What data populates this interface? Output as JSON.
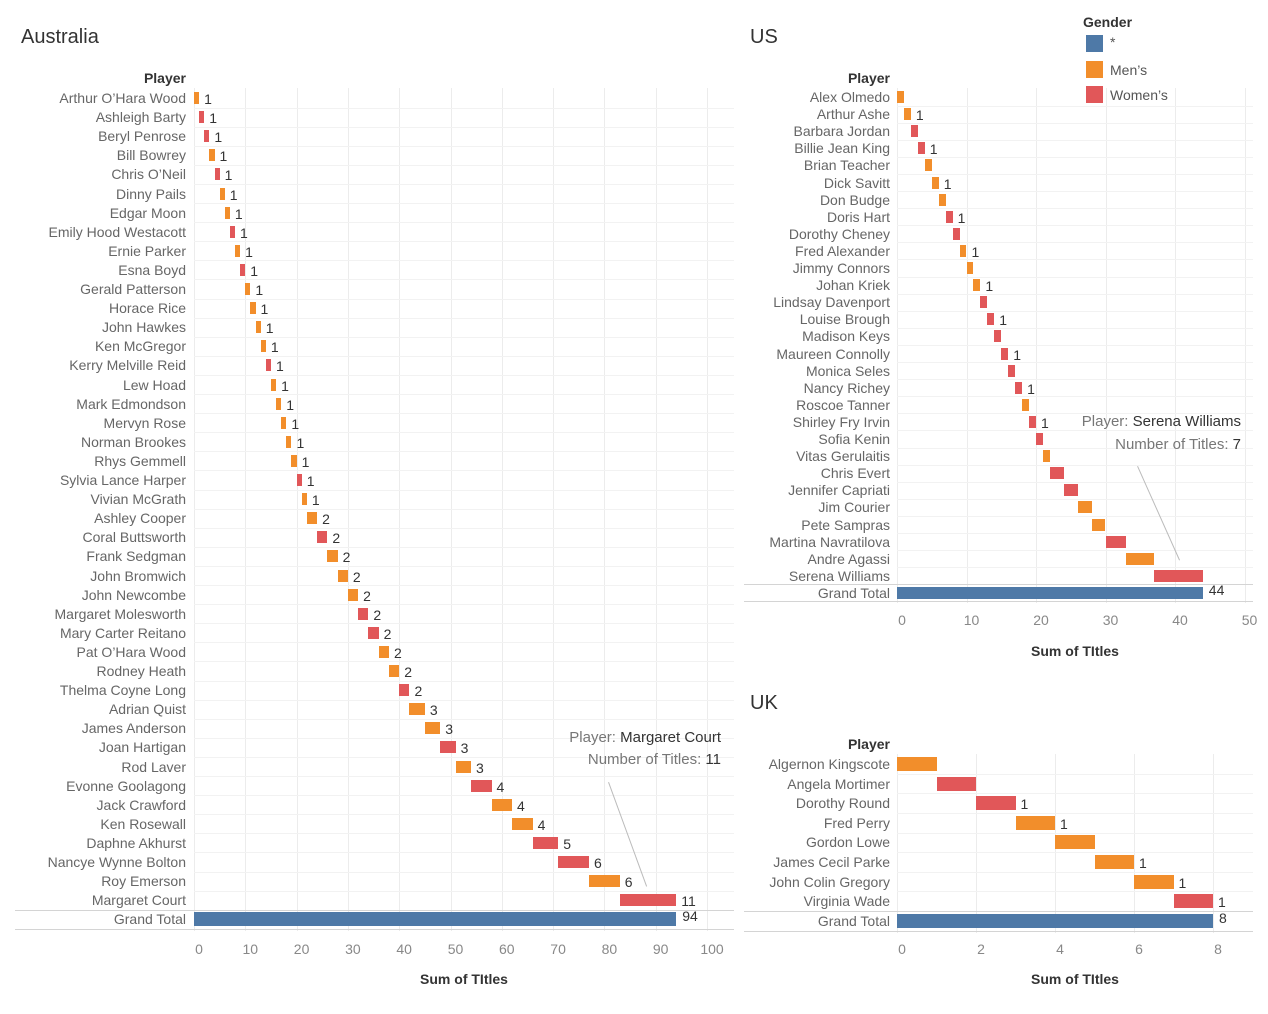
{
  "legend": {
    "title": "Gender",
    "items": [
      {
        "label": "*",
        "color": "#4e79a7"
      },
      {
        "label": "Men’s",
        "color": "#f28e2b"
      },
      {
        "label": "Women’s",
        "color": "#e15759"
      }
    ]
  },
  "chart_data": [
    {
      "type": "bar",
      "subtype": "waterfall (gantt, cumulative)",
      "title": "Australia",
      "row_header": "Player",
      "xlabel": "Sum of TItles",
      "xlim": [
        0,
        105
      ],
      "xticks": [
        0,
        10,
        20,
        30,
        40,
        50,
        60,
        70,
        80,
        90,
        100
      ],
      "grid": true,
      "players": [
        {
          "name": "Arthur O’Hara Wood",
          "gender": "Men’s",
          "value": 1,
          "show_label": true
        },
        {
          "name": "Ashleigh Barty",
          "gender": "Women’s",
          "value": 1,
          "show_label": true
        },
        {
          "name": "Beryl Penrose",
          "gender": "Women’s",
          "value": 1,
          "show_label": true
        },
        {
          "name": "Bill Bowrey",
          "gender": "Men’s",
          "value": 1,
          "show_label": true
        },
        {
          "name": "Chris O’Neil",
          "gender": "Women’s",
          "value": 1,
          "show_label": true
        },
        {
          "name": "Dinny Pails",
          "gender": "Men’s",
          "value": 1,
          "show_label": true
        },
        {
          "name": "Edgar Moon",
          "gender": "Men’s",
          "value": 1,
          "show_label": true
        },
        {
          "name": "Emily Hood Westacott",
          "gender": "Women’s",
          "value": 1,
          "show_label": true
        },
        {
          "name": "Ernie Parker",
          "gender": "Men’s",
          "value": 1,
          "show_label": true
        },
        {
          "name": "Esna Boyd",
          "gender": "Women’s",
          "value": 1,
          "show_label": true
        },
        {
          "name": "Gerald Patterson",
          "gender": "Men’s",
          "value": 1,
          "show_label": true
        },
        {
          "name": "Horace Rice",
          "gender": "Men’s",
          "value": 1,
          "show_label": true
        },
        {
          "name": "John Hawkes",
          "gender": "Men’s",
          "value": 1,
          "show_label": true
        },
        {
          "name": "Ken McGregor",
          "gender": "Men’s",
          "value": 1,
          "show_label": true
        },
        {
          "name": "Kerry Melville Reid",
          "gender": "Women’s",
          "value": 1,
          "show_label": true
        },
        {
          "name": "Lew Hoad",
          "gender": "Men’s",
          "value": 1,
          "show_label": true
        },
        {
          "name": "Mark Edmondson",
          "gender": "Men’s",
          "value": 1,
          "show_label": true
        },
        {
          "name": "Mervyn Rose",
          "gender": "Men’s",
          "value": 1,
          "show_label": true
        },
        {
          "name": "Norman Brookes",
          "gender": "Men’s",
          "value": 1,
          "show_label": true
        },
        {
          "name": "Rhys Gemmell",
          "gender": "Men’s",
          "value": 1,
          "show_label": true
        },
        {
          "name": "Sylvia Lance Harper",
          "gender": "Women’s",
          "value": 1,
          "show_label": true
        },
        {
          "name": "Vivian McGrath",
          "gender": "Men’s",
          "value": 1,
          "show_label": true
        },
        {
          "name": "Ashley Cooper",
          "gender": "Men’s",
          "value": 2,
          "show_label": true
        },
        {
          "name": "Coral Buttsworth",
          "gender": "Women’s",
          "value": 2,
          "show_label": true
        },
        {
          "name": "Frank Sedgman",
          "gender": "Men’s",
          "value": 2,
          "show_label": true
        },
        {
          "name": "John Bromwich",
          "gender": "Men’s",
          "value": 2,
          "show_label": true
        },
        {
          "name": "John Newcombe",
          "gender": "Men’s",
          "value": 2,
          "show_label": true
        },
        {
          "name": "Margaret Molesworth",
          "gender": "Women’s",
          "value": 2,
          "show_label": true
        },
        {
          "name": "Mary Carter Reitano",
          "gender": "Women’s",
          "value": 2,
          "show_label": true
        },
        {
          "name": "Pat O’Hara Wood",
          "gender": "Men’s",
          "value": 2,
          "show_label": true
        },
        {
          "name": "Rodney Heath",
          "gender": "Men’s",
          "value": 2,
          "show_label": true
        },
        {
          "name": "Thelma Coyne Long",
          "gender": "Women’s",
          "value": 2,
          "show_label": true
        },
        {
          "name": "Adrian Quist",
          "gender": "Men’s",
          "value": 3,
          "show_label": true
        },
        {
          "name": "James Anderson",
          "gender": "Men’s",
          "value": 3,
          "show_label": true
        },
        {
          "name": "Joan Hartigan",
          "gender": "Women’s",
          "value": 3,
          "show_label": true
        },
        {
          "name": "Rod Laver",
          "gender": "Men’s",
          "value": 3,
          "show_label": true
        },
        {
          "name": "Evonne Goolagong",
          "gender": "Women’s",
          "value": 4,
          "show_label": true
        },
        {
          "name": "Jack Crawford",
          "gender": "Men’s",
          "value": 4,
          "show_label": true
        },
        {
          "name": "Ken Rosewall",
          "gender": "Men’s",
          "value": 4,
          "show_label": true
        },
        {
          "name": "Daphne Akhurst",
          "gender": "Women’s",
          "value": 5,
          "show_label": true
        },
        {
          "name": "Nancye Wynne Bolton",
          "gender": "Women’s",
          "value": 6,
          "show_label": true
        },
        {
          "name": "Roy Emerson",
          "gender": "Men’s",
          "value": 6,
          "show_label": true
        },
        {
          "name": "Margaret Court",
          "gender": "Women’s",
          "value": 11,
          "show_label": true
        }
      ],
      "grand_total": {
        "label": "Grand Total",
        "gender": "*",
        "value": 94
      },
      "annotation": {
        "player_prefix": "Player: ",
        "player": "Margaret Court",
        "titles_prefix": "Number of Titles: ",
        "titles": "11"
      }
    },
    {
      "type": "bar",
      "subtype": "waterfall (gantt, cumulative)",
      "title": "US",
      "row_header": "Player",
      "xlabel": "Sum of TItles",
      "xlim": [
        0,
        51
      ],
      "xticks": [
        0,
        10,
        20,
        30,
        40,
        50
      ],
      "grid": true,
      "players": [
        {
          "name": "Alex Olmedo",
          "gender": "Men’s",
          "value": 1,
          "show_label": false
        },
        {
          "name": "Arthur Ashe",
          "gender": "Men’s",
          "value": 1,
          "show_label": true
        },
        {
          "name": "Barbara Jordan",
          "gender": "Women’s",
          "value": 1,
          "show_label": false
        },
        {
          "name": "Billie Jean King",
          "gender": "Women’s",
          "value": 1,
          "show_label": true
        },
        {
          "name": "Brian Teacher",
          "gender": "Men’s",
          "value": 1,
          "show_label": false
        },
        {
          "name": "Dick Savitt",
          "gender": "Men’s",
          "value": 1,
          "show_label": true
        },
        {
          "name": "Don Budge",
          "gender": "Men’s",
          "value": 1,
          "show_label": false
        },
        {
          "name": "Doris Hart",
          "gender": "Women’s",
          "value": 1,
          "show_label": true
        },
        {
          "name": "Dorothy Cheney",
          "gender": "Women’s",
          "value": 1,
          "show_label": false
        },
        {
          "name": "Fred Alexander",
          "gender": "Men’s",
          "value": 1,
          "show_label": true
        },
        {
          "name": "Jimmy Connors",
          "gender": "Men’s",
          "value": 1,
          "show_label": false
        },
        {
          "name": "Johan Kriek",
          "gender": "Men’s",
          "value": 1,
          "show_label": true
        },
        {
          "name": "Lindsay Davenport",
          "gender": "Women’s",
          "value": 1,
          "show_label": false
        },
        {
          "name": "Louise Brough",
          "gender": "Women’s",
          "value": 1,
          "show_label": true
        },
        {
          "name": "Madison Keys",
          "gender": "Women’s",
          "value": 1,
          "show_label": false
        },
        {
          "name": "Maureen Connolly",
          "gender": "Women’s",
          "value": 1,
          "show_label": true
        },
        {
          "name": "Monica Seles",
          "gender": "Women’s",
          "value": 1,
          "show_label": false
        },
        {
          "name": "Nancy Richey",
          "gender": "Women’s",
          "value": 1,
          "show_label": true
        },
        {
          "name": "Roscoe Tanner",
          "gender": "Men’s",
          "value": 1,
          "show_label": false
        },
        {
          "name": "Shirley Fry Irvin",
          "gender": "Women’s",
          "value": 1,
          "show_label": true
        },
        {
          "name": "Sofia Kenin",
          "gender": "Women’s",
          "value": 1,
          "show_label": false
        },
        {
          "name": "Vitas Gerulaitis",
          "gender": "Men’s",
          "value": 1,
          "show_label": false
        },
        {
          "name": "Chris Evert",
          "gender": "Women’s",
          "value": 2,
          "show_label": false
        },
        {
          "name": "Jennifer Capriati",
          "gender": "Women’s",
          "value": 2,
          "show_label": false
        },
        {
          "name": "Jim Courier",
          "gender": "Men’s",
          "value": 2,
          "show_label": false
        },
        {
          "name": "Pete Sampras",
          "gender": "Men’s",
          "value": 2,
          "show_label": false
        },
        {
          "name": "Martina Navratilova",
          "gender": "Women’s",
          "value": 3,
          "show_label": false
        },
        {
          "name": "Andre Agassi",
          "gender": "Men’s",
          "value": 4,
          "show_label": false
        },
        {
          "name": "Serena Williams",
          "gender": "Women’s",
          "value": 7,
          "show_label": false
        }
      ],
      "grand_total": {
        "label": "Grand Total",
        "gender": "*",
        "value": 44
      },
      "annotation": {
        "player_prefix": "Player: ",
        "player": "Serena Williams",
        "titles_prefix": "Number of Titles: ",
        "titles": "7"
      }
    },
    {
      "type": "bar",
      "subtype": "waterfall (gantt, cumulative)",
      "title": "UK",
      "row_header": "Player",
      "xlabel": "Sum of TItles",
      "xlim": [
        0,
        9
      ],
      "xticks": [
        0,
        2,
        4,
        6,
        8
      ],
      "grid": true,
      "players": [
        {
          "name": "Algernon Kingscote",
          "gender": "Men’s",
          "value": 1,
          "show_label": false
        },
        {
          "name": "Angela Mortimer",
          "gender": "Women’s",
          "value": 1,
          "show_label": false
        },
        {
          "name": "Dorothy Round",
          "gender": "Women’s",
          "value": 1,
          "show_label": true
        },
        {
          "name": "Fred Perry",
          "gender": "Men’s",
          "value": 1,
          "show_label": true
        },
        {
          "name": "Gordon Lowe",
          "gender": "Men’s",
          "value": 1,
          "show_label": false
        },
        {
          "name": "James Cecil Parke",
          "gender": "Men’s",
          "value": 1,
          "show_label": true
        },
        {
          "name": "John Colin Gregory",
          "gender": "Men’s",
          "value": 1,
          "show_label": true
        },
        {
          "name": "Virginia Wade",
          "gender": "Women’s",
          "value": 1,
          "show_label": true
        }
      ],
      "grand_total": {
        "label": "Grand Total",
        "gender": "*",
        "value": 8
      },
      "annotation": null
    }
  ]
}
